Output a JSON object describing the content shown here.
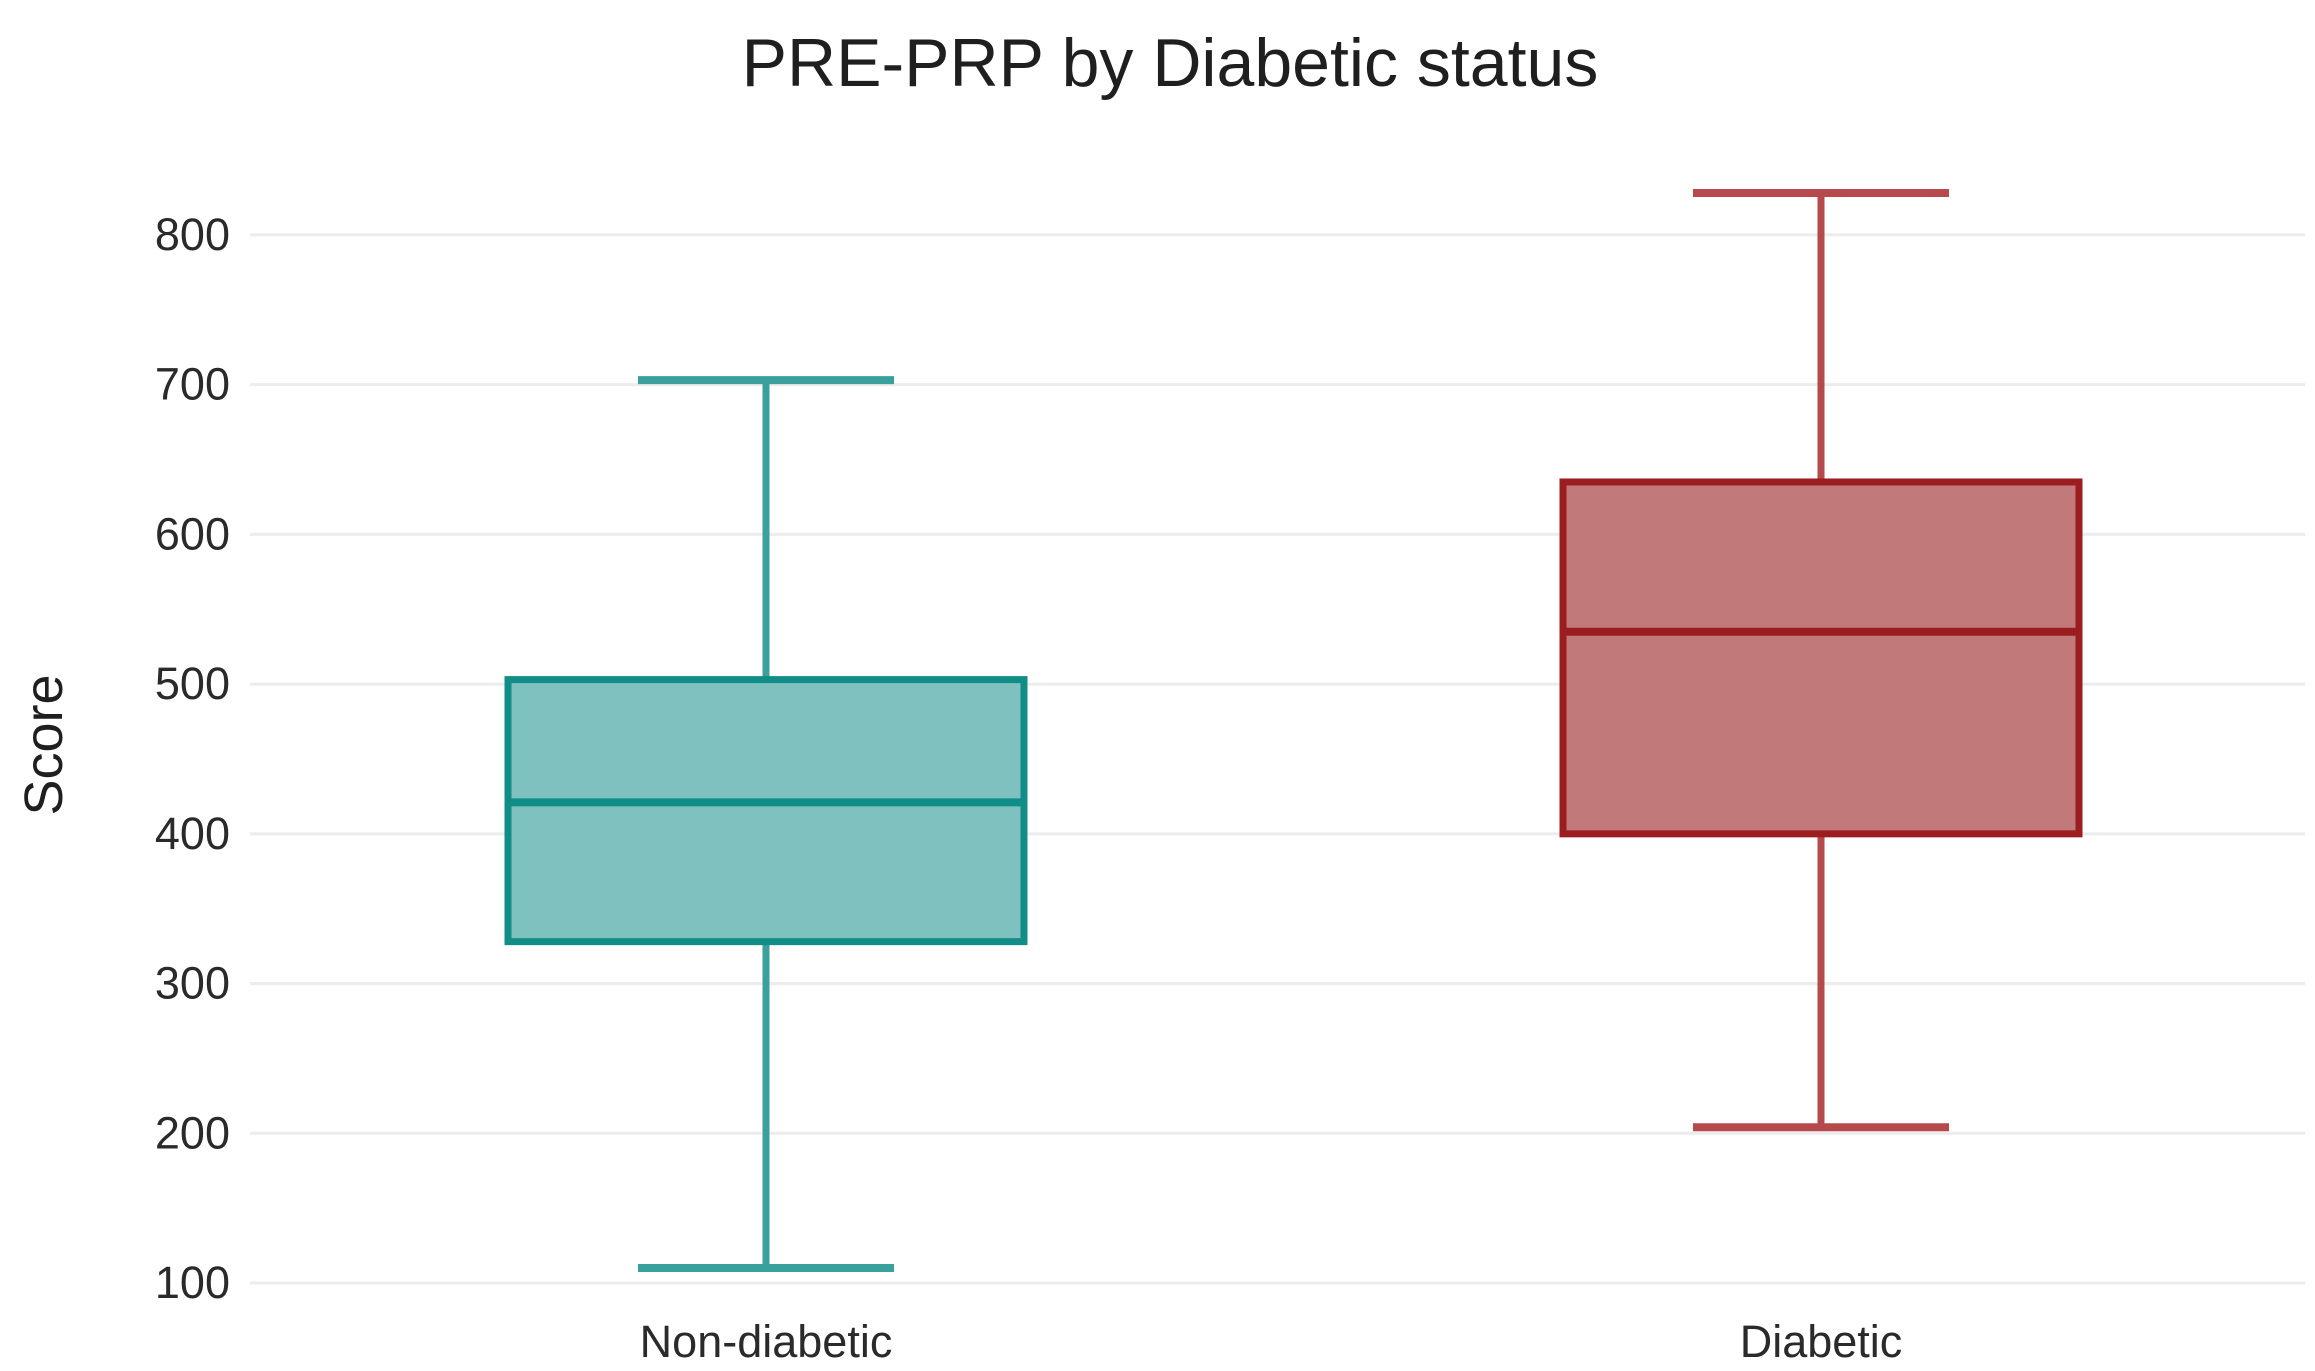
{
  "chart_data": {
    "type": "boxplot",
    "title": "PRE-PRP by Diabetic status",
    "xlabel": "",
    "ylabel": "Score",
    "ylim": [
      90,
      830
    ],
    "grid": true,
    "yticks": [
      100,
      200,
      300,
      400,
      500,
      600,
      700,
      800
    ],
    "categories": [
      "Non-diabetic",
      "Diabetic"
    ],
    "series": [
      {
        "name": "Non-diabetic",
        "min": 110,
        "q1": 328,
        "median": 421,
        "q3": 503,
        "max": 703,
        "fill": "#7fc1be",
        "stroke": "#118d87",
        "whisker": "#3aa09b"
      },
      {
        "name": "Diabetic",
        "min": 204,
        "q1": 400,
        "median": 535,
        "q3": 635,
        "max": 828,
        "fill": "#c17a79",
        "stroke": "#9b1d1f",
        "whisker": "#b5494b"
      }
    ]
  }
}
